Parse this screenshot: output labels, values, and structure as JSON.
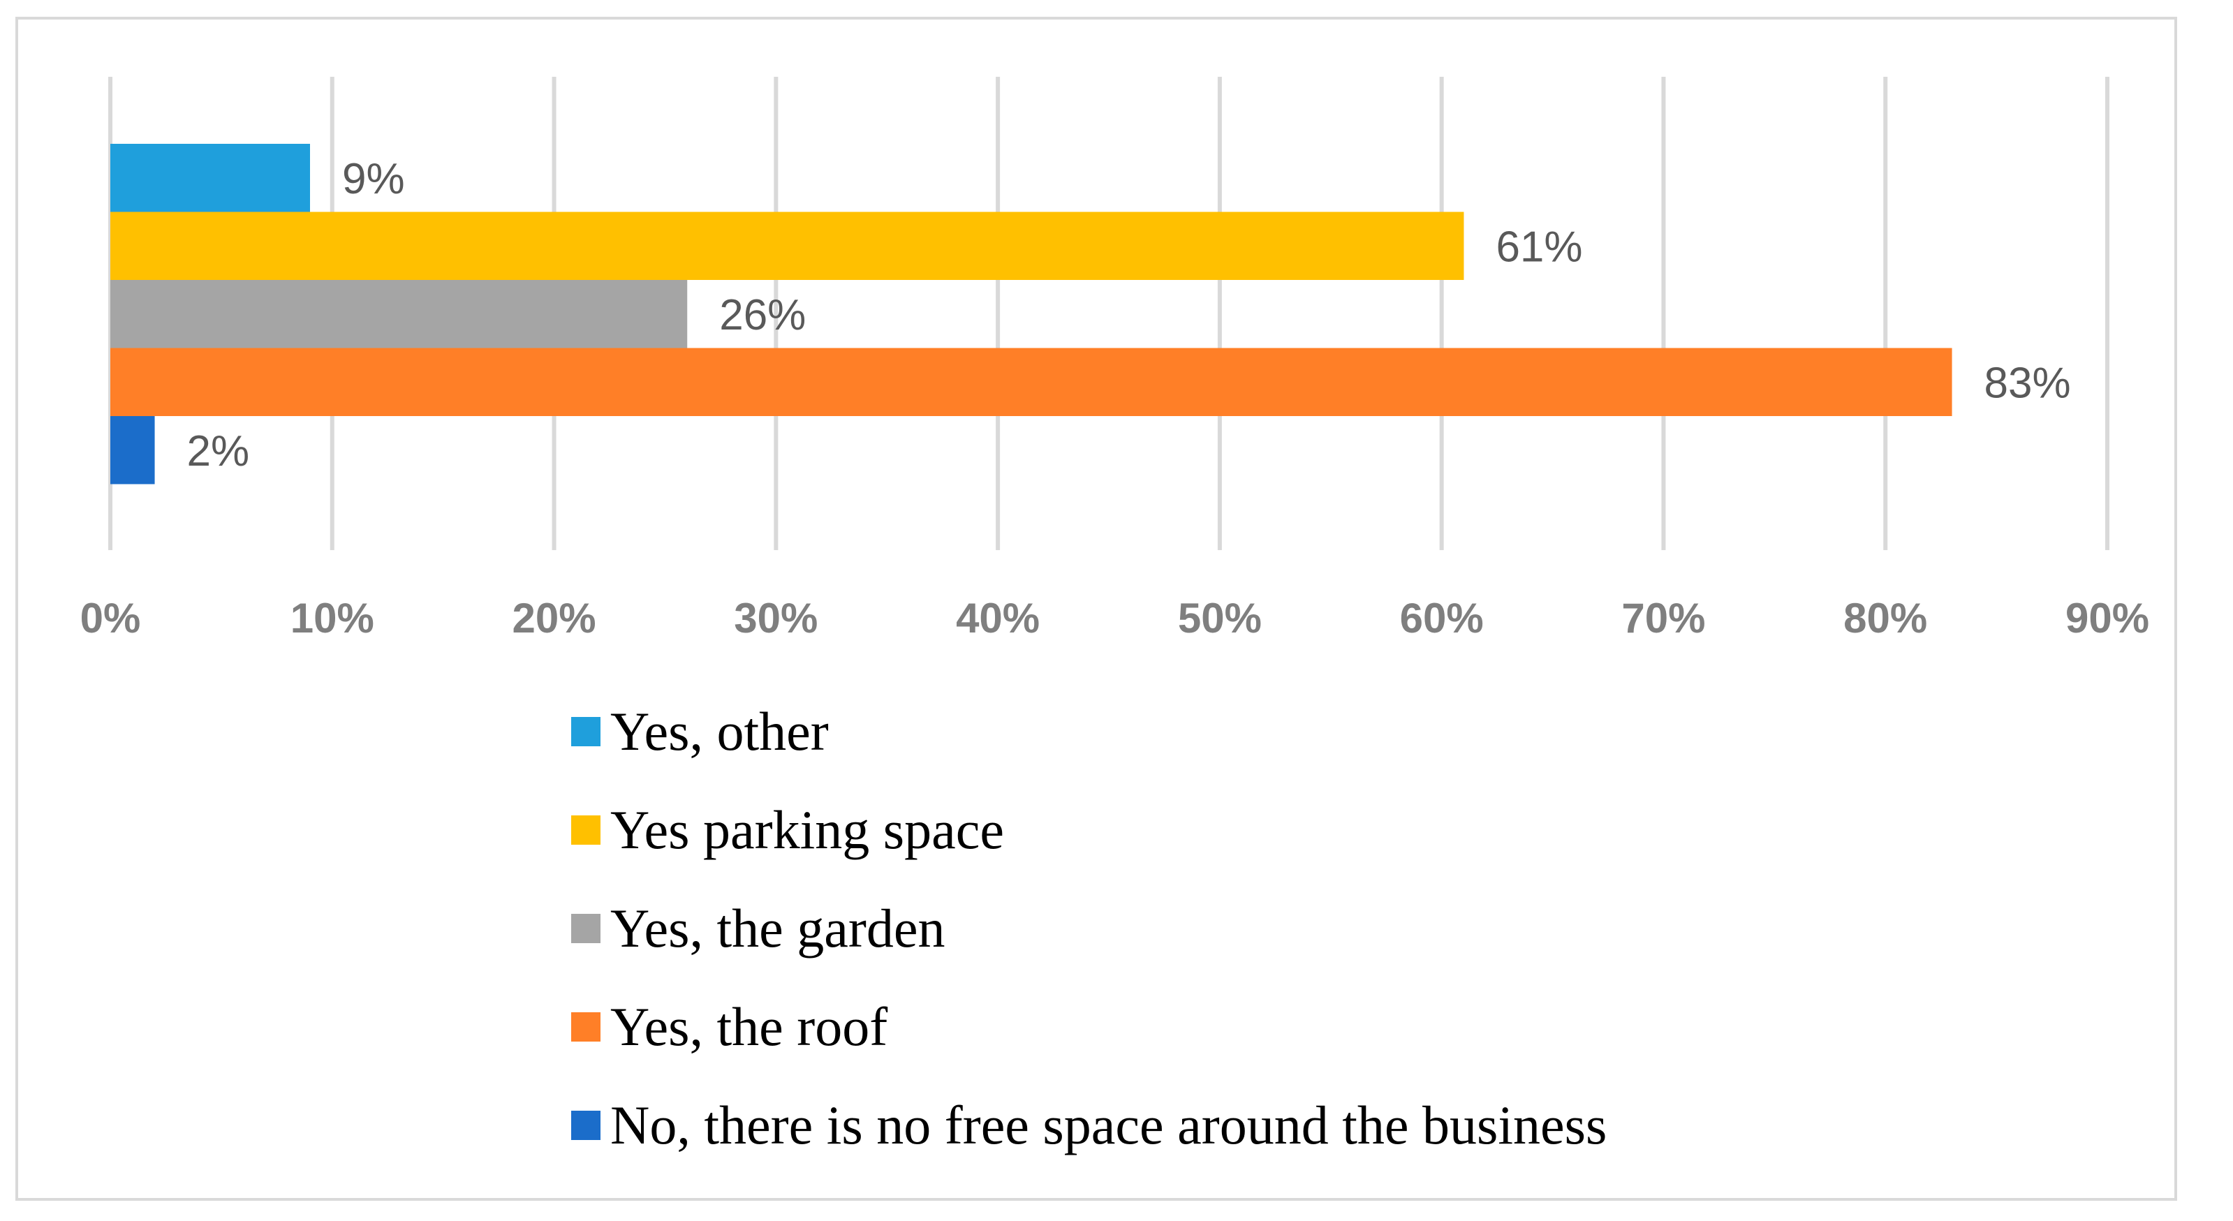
{
  "chart_data": {
    "type": "bar",
    "orientation": "horizontal",
    "title": "",
    "xlabel": "",
    "ylabel": "",
    "xlim": [
      0,
      90
    ],
    "grid": true,
    "legend_placement": "bottom",
    "tick_labels": [
      "0%",
      "10%",
      "20%",
      "30%",
      "40%",
      "50%",
      "60%",
      "70%",
      "80%",
      "90%"
    ],
    "series": [
      {
        "name": "Yes, other",
        "value": 9,
        "label": "9%",
        "color": "#1f9fdc"
      },
      {
        "name": "Yes parking space",
        "value": 61,
        "label": "61%",
        "color": "#ffc000"
      },
      {
        "name": "Yes, the garden",
        "value": 26,
        "label": "26%",
        "color": "#a5a5a5"
      },
      {
        "name": "Yes, the roof",
        "value": 83,
        "label": "83%",
        "color": "#ff7f27"
      },
      {
        "name": "No, there is no free space around the business",
        "value": 2,
        "label": "2%",
        "color": "#1b6dca"
      }
    ]
  }
}
